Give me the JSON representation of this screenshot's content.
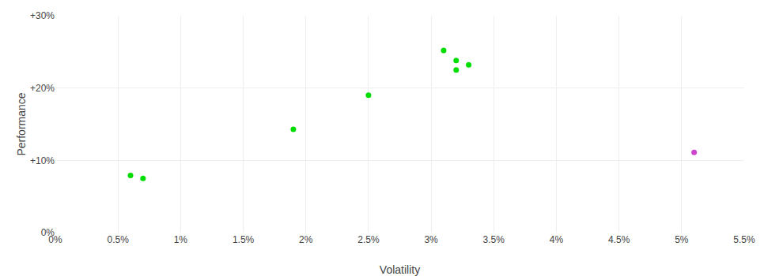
{
  "chart_data": {
    "type": "scatter",
    "xlabel": "Volatility",
    "ylabel": "Performance",
    "xlim": [
      0.0,
      0.055
    ],
    "ylim": [
      0.0,
      0.3
    ],
    "xticks": [
      {
        "value": 0.0,
        "label": "0%"
      },
      {
        "value": 0.005,
        "label": "0.5%"
      },
      {
        "value": 0.01,
        "label": "1%"
      },
      {
        "value": 0.015,
        "label": "1.5%"
      },
      {
        "value": 0.02,
        "label": "2%"
      },
      {
        "value": 0.025,
        "label": "2.5%"
      },
      {
        "value": 0.03,
        "label": "3%"
      },
      {
        "value": 0.035,
        "label": "3.5%"
      },
      {
        "value": 0.04,
        "label": "4%"
      },
      {
        "value": 0.045,
        "label": "4.5%"
      },
      {
        "value": 0.05,
        "label": "5%"
      },
      {
        "value": 0.055,
        "label": "5.5%"
      }
    ],
    "yticks": [
      {
        "value": 0.0,
        "label": "0%"
      },
      {
        "value": 0.1,
        "label": "+10%"
      },
      {
        "value": 0.2,
        "label": "+20%"
      },
      {
        "value": 0.3,
        "label": "+30%"
      }
    ],
    "grid": true,
    "series": [
      {
        "color": "#00dd00",
        "x": [
          0.006,
          0.007,
          0.019,
          0.025,
          0.031,
          0.032,
          0.033,
          0.032
        ],
        "values": [
          0.079,
          0.075,
          0.143,
          0.19,
          0.252,
          0.238,
          0.232,
          0.225
        ]
      },
      {
        "color": "#cc44cc",
        "x": [
          0.051
        ],
        "values": [
          0.111
        ]
      }
    ]
  }
}
